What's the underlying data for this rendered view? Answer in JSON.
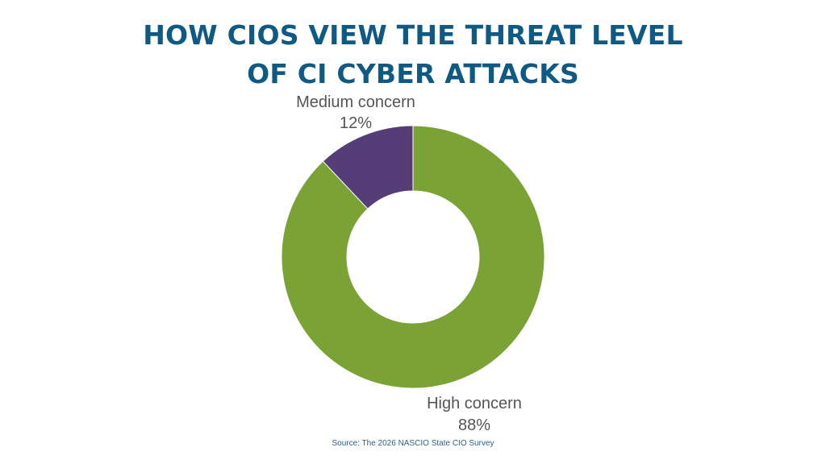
{
  "chart_data": {
    "type": "pie",
    "donut": true,
    "title": [
      "HOW CIOS VIEW THE THREAT LEVEL",
      "OF CI CYBER ATTACKS"
    ],
    "slices": [
      {
        "name": "High concern",
        "value": 88,
        "label": "88%",
        "color": "#7aa234"
      },
      {
        "name": "Medium concern",
        "value": 12,
        "label": "12%",
        "color": "#553d78"
      }
    ],
    "legend": "none"
  },
  "source": "Source: The 2026 NASCIO State CIO Survey"
}
